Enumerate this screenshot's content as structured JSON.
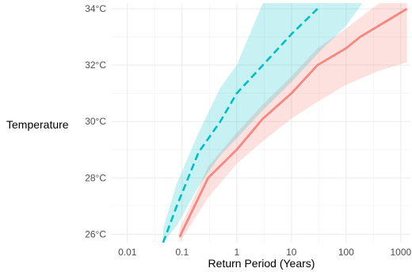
{
  "chart_data": {
    "type": "line",
    "title": "",
    "xlabel": "Return Period (Years)",
    "ylabel": "Temperature",
    "x_scale": "log",
    "xlim": [
      0.005,
      1500
    ],
    "ylim": [
      25.7,
      34.2
    ],
    "x_ticks": [
      {
        "value": 0.01,
        "label": "0.01"
      },
      {
        "value": 0.1,
        "label": "0.1"
      },
      {
        "value": 1,
        "label": "1"
      },
      {
        "value": 10,
        "label": "10"
      },
      {
        "value": 100,
        "label": "100"
      },
      {
        "value": 1000,
        "label": "1000"
      }
    ],
    "y_ticks": [
      {
        "value": 26,
        "label": "26°C"
      },
      {
        "value": 28,
        "label": "28°C"
      },
      {
        "value": 30,
        "label": "30°C"
      },
      {
        "value": 32,
        "label": "32°C"
      },
      {
        "value": 34,
        "label": "34°C"
      }
    ],
    "grid": true,
    "legend": "none",
    "series": [
      {
        "color": "#f8766d",
        "line_style": "solid",
        "ribbon_color": "#f8766d",
        "points": [
          {
            "x": 0.09,
            "y": 25.9
          },
          {
            "x": 0.3,
            "y": 28.0
          },
          {
            "x": 1,
            "y": 29.0
          },
          {
            "x": 3,
            "y": 30.1
          },
          {
            "x": 10,
            "y": 31.0
          },
          {
            "x": 30,
            "y": 32.0
          },
          {
            "x": 100,
            "y": 32.6
          },
          {
            "x": 180,
            "y": 33.0
          },
          {
            "x": 1300,
            "y": 34.0
          }
        ],
        "ribbon": [
          {
            "x": 0.09,
            "lower": 25.7,
            "upper": 26.2
          },
          {
            "x": 0.3,
            "lower": 27.3,
            "upper": 28.4
          },
          {
            "x": 1,
            "lower": 28.5,
            "upper": 29.6
          },
          {
            "x": 3,
            "lower": 29.3,
            "upper": 30.6
          },
          {
            "x": 10,
            "lower": 30.1,
            "upper": 31.6
          },
          {
            "x": 30,
            "lower": 30.7,
            "upper": 32.6
          },
          {
            "x": 100,
            "lower": 31.3,
            "upper": 33.3
          },
          {
            "x": 400,
            "lower": 31.8,
            "upper": 34.2
          },
          {
            "x": 1300,
            "lower": 32.1,
            "upper": 34.2
          }
        ]
      },
      {
        "color": "#00bfc4",
        "line_style": "dashed",
        "ribbon_color": "#00bfc4",
        "points": [
          {
            "x": 0.045,
            "y": 25.7
          },
          {
            "x": 0.08,
            "y": 27.0
          },
          {
            "x": 0.2,
            "y": 28.9
          },
          {
            "x": 0.5,
            "y": 30.0
          },
          {
            "x": 1,
            "y": 31.0
          },
          {
            "x": 3,
            "y": 32.0
          },
          {
            "x": 10,
            "y": 33.1
          },
          {
            "x": 30,
            "y": 34.0
          }
        ],
        "ribbon": [
          {
            "x": 0.045,
            "lower": 25.7,
            "upper": 26.2
          },
          {
            "x": 0.08,
            "lower": 26.3,
            "upper": 27.8
          },
          {
            "x": 0.2,
            "lower": 27.7,
            "upper": 29.6
          },
          {
            "x": 0.5,
            "lower": 28.8,
            "upper": 31.2
          },
          {
            "x": 1,
            "lower": 29.4,
            "upper": 32.0
          },
          {
            "x": 3,
            "lower": 30.4,
            "upper": 34.2
          },
          {
            "x": 10,
            "lower": 31.4,
            "upper": 34.2
          },
          {
            "x": 30,
            "lower": 32.4,
            "upper": 34.2
          },
          {
            "x": 100,
            "lower": 33.4,
            "upper": 34.2
          },
          {
            "x": 200,
            "lower": 34.2,
            "upper": 34.2
          }
        ]
      }
    ]
  }
}
